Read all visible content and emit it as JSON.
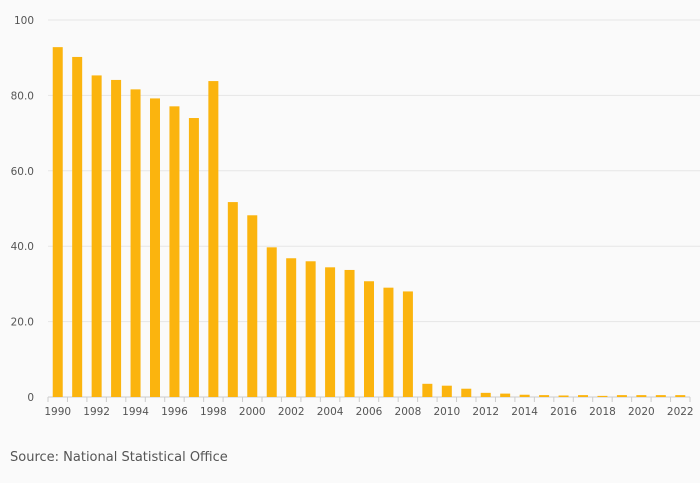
{
  "chart_data": {
    "type": "bar",
    "title": "",
    "xlabel": "",
    "ylabel": "",
    "ylim": [
      0,
      100
    ],
    "yticks": [
      0,
      20,
      40,
      60,
      80,
      100
    ],
    "ytick_labels": [
      "0",
      "20.0",
      "40.0",
      "60.0",
      "80.0",
      "100"
    ],
    "categories": [
      "1990",
      "1991",
      "1992",
      "1993",
      "1994",
      "1995",
      "1996",
      "1997",
      "1998",
      "1999",
      "2000",
      "2001",
      "2002",
      "2003",
      "2004",
      "2005",
      "2006",
      "2007",
      "2008",
      "2009",
      "2010",
      "2011",
      "2012",
      "2013",
      "2014",
      "2015",
      "2016",
      "2017",
      "2018",
      "2019",
      "2020",
      "2021",
      "2022"
    ],
    "xtick_labels": [
      "1990",
      "",
      "1992",
      "",
      "1994",
      "",
      "1996",
      "",
      "1998",
      "",
      "2000",
      "",
      "2002",
      "",
      "2004",
      "",
      "2006",
      "",
      "2008",
      "",
      "2010",
      "",
      "2012",
      "",
      "2014",
      "",
      "2016",
      "",
      "2018",
      "",
      "2020",
      "",
      "2022"
    ],
    "values": [
      92.8,
      90.2,
      85.3,
      84.1,
      81.6,
      79.2,
      77.1,
      74.0,
      83.8,
      51.7,
      48.2,
      39.7,
      36.8,
      36.0,
      34.4,
      33.7,
      30.7,
      29.0,
      28.0,
      3.5,
      3.0,
      2.2,
      1.1,
      0.9,
      0.6,
      0.5,
      0.4,
      0.5,
      0.3,
      0.5,
      0.5,
      0.5,
      0.5
    ],
    "bar_color": "#fbb40e",
    "grid": true,
    "grid_color": "#e6e6e6",
    "axis_color": "#cccccc"
  },
  "source": "Source: National Statistical Office"
}
